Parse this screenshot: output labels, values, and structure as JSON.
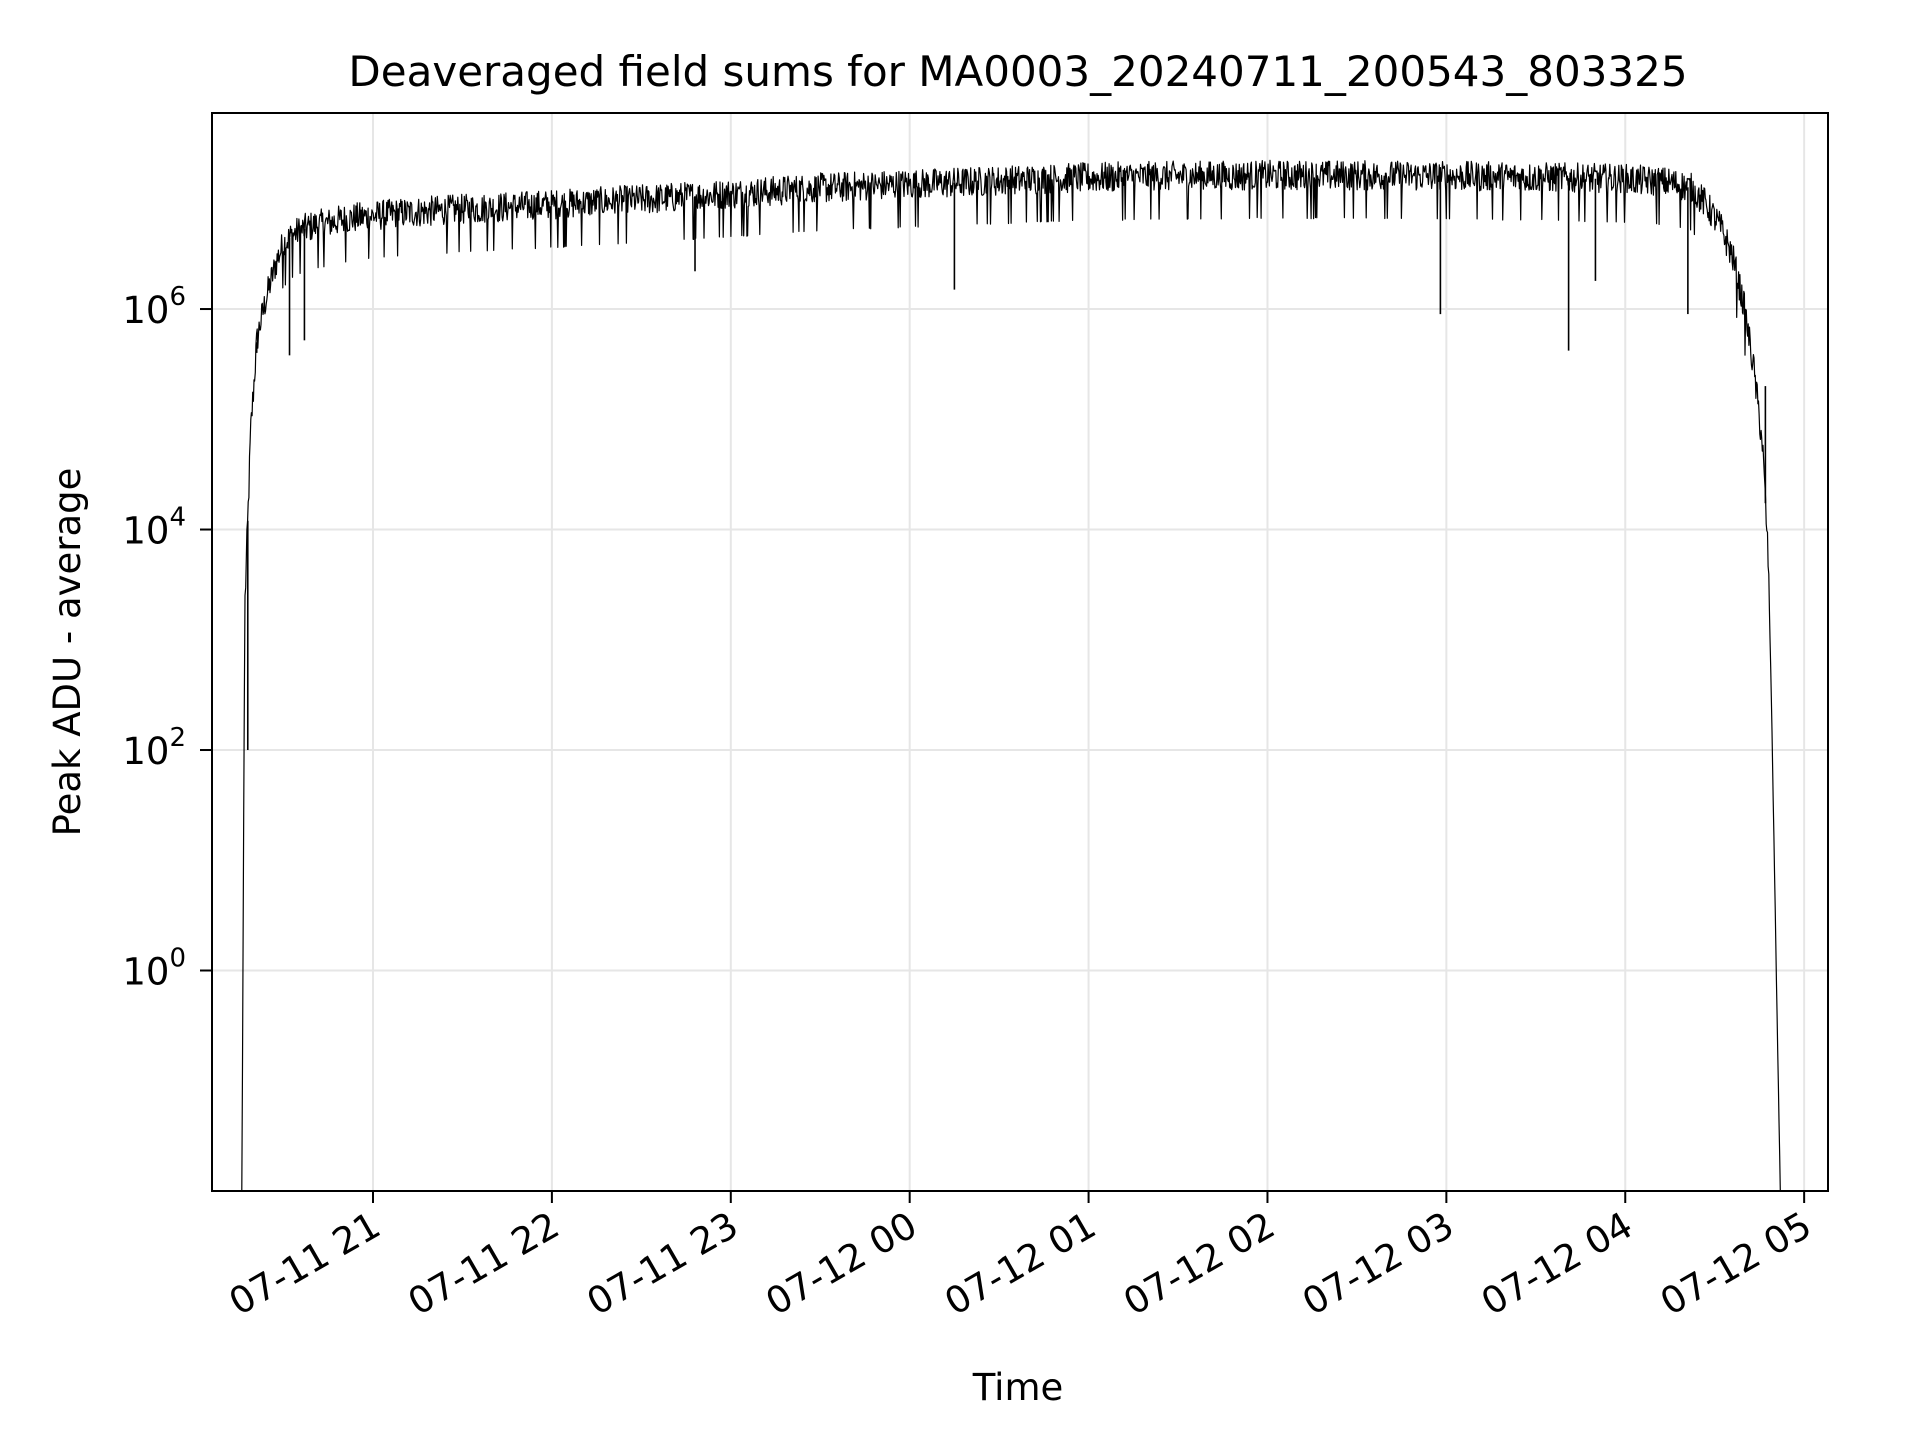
{
  "chart_data": {
    "type": "line",
    "title": "Deaveraged field sums for MA0003_20240711_200543_803325",
    "xlabel": "Time",
    "ylabel": "Peak ADU - average",
    "yscale": "log",
    "grid": true,
    "x_ticks": [
      "07-11 21",
      "07-11 22",
      "07-11 23",
      "07-12 00",
      "07-12 01",
      "07-12 02",
      "07-12 03",
      "07-12 04",
      "07-12 05"
    ],
    "x_tick_times": [
      "2024-07-11T21:00",
      "2024-07-11T22:00",
      "2024-07-11T23:00",
      "2024-07-12T00:00",
      "2024-07-12T01:00",
      "2024-07-12T02:00",
      "2024-07-12T03:00",
      "2024-07-12T04:00",
      "2024-07-12T05:00"
    ],
    "xlim": [
      "2024-07-11T20:06",
      "2024-07-12T05:08"
    ],
    "y_ticks": [
      {
        "base": "10",
        "exp": "0"
      },
      {
        "base": "10",
        "exp": "2"
      },
      {
        "base": "10",
        "exp": "4"
      },
      {
        "base": "10",
        "exp": "6"
      }
    ],
    "y_tick_values": [
      1,
      100,
      10000,
      1000000
    ],
    "ylim": [
      0.01,
      60000000
    ],
    "series": [
      {
        "color": "#000000",
        "x": [
          "2024-07-11T20:16",
          "2024-07-11T20:17",
          "2024-07-11T20:18",
          "2024-07-11T20:19",
          "2024-07-11T20:20",
          "2024-07-11T20:21",
          "2024-07-11T20:22",
          "2024-07-11T20:24",
          "2024-07-11T20:26",
          "2024-07-11T20:28",
          "2024-07-11T20:30",
          "2024-07-11T20:33",
          "2024-07-11T20:36",
          "2024-07-11T20:40",
          "2024-07-11T20:45",
          "2024-07-11T20:50",
          "2024-07-11T21:00",
          "2024-07-11T21:15",
          "2024-07-11T21:30",
          "2024-07-11T22:00",
          "2024-07-11T22:30",
          "2024-07-11T23:00",
          "2024-07-11T23:30",
          "2024-07-12T00:00",
          "2024-07-12T00:30",
          "2024-07-12T01:00",
          "2024-07-12T01:30",
          "2024-07-12T02:00",
          "2024-07-12T02:30",
          "2024-07-12T03:00",
          "2024-07-12T03:30",
          "2024-07-12T04:00",
          "2024-07-12T04:15",
          "2024-07-12T04:22",
          "2024-07-12T04:27",
          "2024-07-12T04:32",
          "2024-07-12T04:36",
          "2024-07-12T04:40",
          "2024-07-12T04:43",
          "2024-07-12T04:46",
          "2024-07-12T04:48",
          "2024-07-12T04:49",
          "2024-07-12T04:50",
          "2024-07-12T04:51",
          "2024-07-12T04:52"
        ],
        "y": [
          0.01,
          2000,
          12000,
          80000,
          200000,
          500000,
          700000,
          1200000,
          1900000,
          2900000,
          3900000,
          4700000,
          5200000,
          5700000,
          6000000,
          6500000,
          7000000,
          7600000,
          8000000,
          8800000,
          9800000,
          11000000,
          12500000,
          13500000,
          14500000,
          15500000,
          16000000,
          16200000,
          16200000,
          16000000,
          15600000,
          15000000,
          14000000,
          12500000,
          9000000,
          5500000,
          3000000,
          1000000,
          300000,
          60000,
          5000,
          300,
          10,
          0.3,
          0.01
        ],
        "spikes": [
          {
            "x": "2024-07-11T20:18",
            "y": 100
          },
          {
            "x": "2024-07-11T20:21",
            "y": 400000
          },
          {
            "x": "2024-07-11T20:32",
            "y": 380000
          },
          {
            "x": "2024-07-11T20:37",
            "y": 520000
          },
          {
            "x": "2024-07-11T22:48",
            "y": 2200000
          },
          {
            "x": "2024-07-12T00:15",
            "y": 1500000
          },
          {
            "x": "2024-07-12T02:58",
            "y": 900000
          },
          {
            "x": "2024-07-12T03:41",
            "y": 420000
          },
          {
            "x": "2024-07-12T03:50",
            "y": 1800000
          },
          {
            "x": "2024-07-12T04:21",
            "y": 900000
          },
          {
            "x": "2024-07-12T04:47",
            "y": 200000
          }
        ]
      }
    ]
  }
}
